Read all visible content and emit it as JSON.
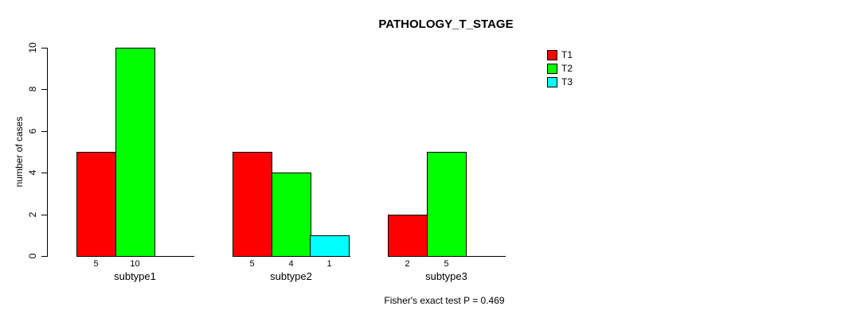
{
  "chart_data": {
    "type": "bar",
    "title": "PATHOLOGY_T_STAGE",
    "ylabel": "number of cases",
    "xlabel": "",
    "ylim": [
      0,
      10
    ],
    "yticks": [
      0,
      2,
      4,
      6,
      8,
      10
    ],
    "grid": false,
    "legend_position": "top-right",
    "categories": [
      "subtype1",
      "subtype2",
      "subtype3"
    ],
    "series": [
      {
        "name": "T1",
        "color": "#ff0000",
        "values": [
          5,
          5,
          2
        ]
      },
      {
        "name": "T2",
        "color": "#00ff00",
        "values": [
          10,
          4,
          5
        ]
      },
      {
        "name": "T3",
        "color": "#00ffff",
        "values": [
          null,
          1,
          null
        ]
      }
    ],
    "bar_value_labels": true,
    "footer": "Fisher's exact test P = 0.469",
    "colors": {
      "background": "#ffffff",
      "axis": "#000000",
      "bar_border": "#000000"
    }
  }
}
